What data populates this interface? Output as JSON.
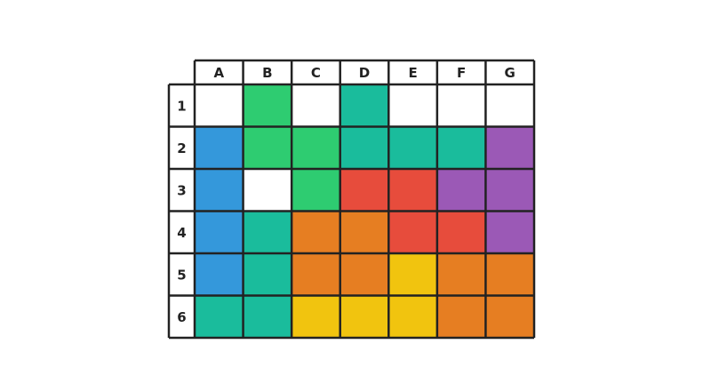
{
  "grid": {
    "columns": [
      "A",
      "B",
      "C",
      "D",
      "E",
      "F",
      "G"
    ],
    "rows": [
      "1",
      "2",
      "3",
      "4",
      "5",
      "6"
    ],
    "cells": [
      [
        "#ffffff",
        "#2ecc71",
        "#ffffff",
        "#1abc9c",
        "#ffffff",
        "#ffffff",
        "#ffffff"
      ],
      [
        "#3498db",
        "#2ecc71",
        "#2ecc71",
        "#1abc9c",
        "#1abc9c",
        "#1abc9c",
        "#9b59b6"
      ],
      [
        "#3498db",
        "#ffffff",
        "#2ecc71",
        "#e74c3c",
        "#e74c3c",
        "#9b59b6",
        "#9b59b6"
      ],
      [
        "#3498db",
        "#1abc9c",
        "#e67e22",
        "#e67e22",
        "#e74c3c",
        "#e74c3c",
        "#9b59b6"
      ],
      [
        "#3498db",
        "#1abc9c",
        "#e67e22",
        "#e67e22",
        "#f1c40f",
        "#e67e22",
        "#e67e22"
      ],
      [
        "#1abc9c",
        "#1abc9c",
        "#f1c40f",
        "#f1c40f",
        "#f1c40f",
        "#e67e22",
        "#e67e22"
      ]
    ]
  }
}
